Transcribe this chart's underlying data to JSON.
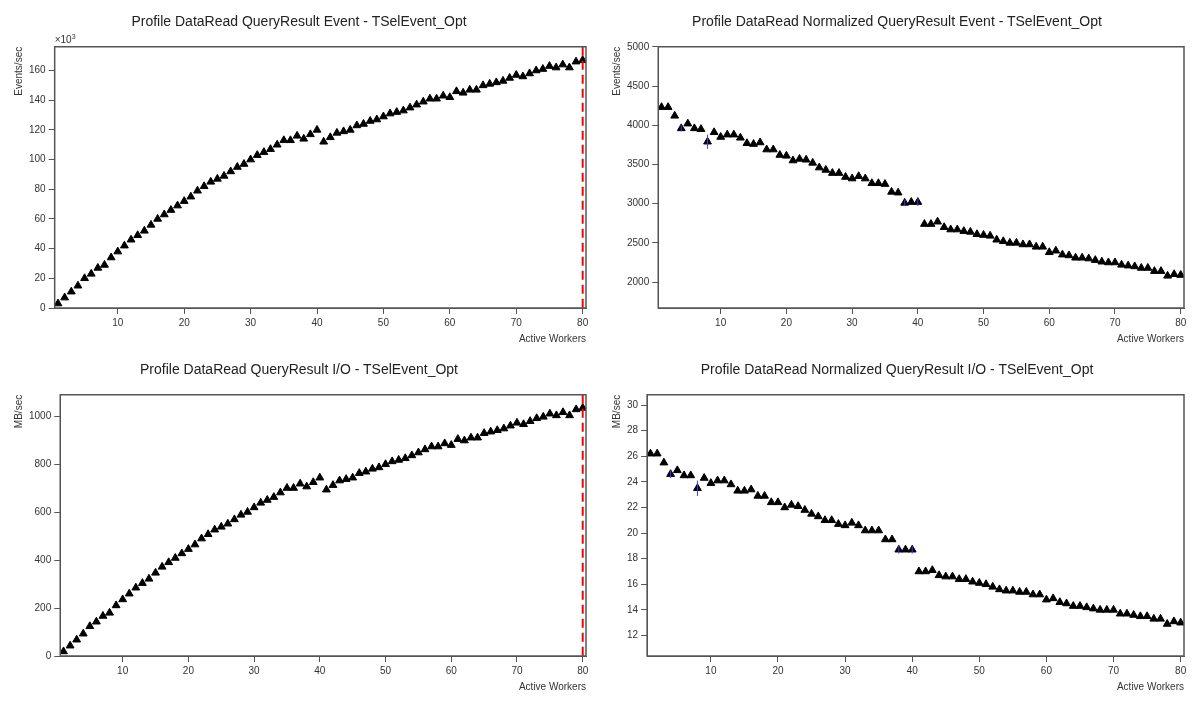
{
  "chart_data": [
    {
      "type": "scatter",
      "title": "Profile DataRead QueryResult Event - TSelEvent_Opt",
      "xlabel": "Active Workers",
      "ylabel": "Events/sec",
      "annotations": [
        "×10$^{3}$"
      ],
      "marker": "triangle",
      "grid": false,
      "xlim": [
        0.5,
        80.5
      ],
      "xticks": [
        10,
        20,
        30,
        40,
        50,
        60,
        70,
        80
      ],
      "ylim": [
        0,
        176
      ],
      "yticks": [
        0,
        20,
        40,
        60,
        80,
        100,
        120,
        140,
        160
      ],
      "ref_lines": [
        {
          "axis": "x",
          "value": 80,
          "color": "#ff0000",
          "line_style": "dashed"
        }
      ],
      "x": [
        1,
        2,
        3,
        4,
        5,
        6,
        7,
        8,
        9,
        10,
        11,
        12,
        13,
        14,
        15,
        16,
        17,
        18,
        19,
        20,
        21,
        22,
        23,
        24,
        25,
        26,
        27,
        28,
        29,
        30,
        31,
        32,
        33,
        34,
        35,
        36,
        37,
        38,
        39,
        40,
        41,
        42,
        43,
        44,
        45,
        46,
        47,
        48,
        49,
        50,
        51,
        52,
        53,
        54,
        55,
        56,
        57,
        58,
        59,
        60,
        61,
        62,
        63,
        64,
        65,
        66,
        67,
        68,
        69,
        70,
        71,
        72,
        73,
        74,
        75,
        76,
        77,
        78,
        79,
        80
      ],
      "series": [
        {
          "color": "#000000",
          "values": [
            3,
            7,
            11,
            15,
            20,
            23,
            27,
            29,
            34,
            38,
            42,
            46,
            49,
            52,
            56,
            60,
            63,
            66,
            69,
            72,
            75,
            79,
            82,
            85,
            87,
            89,
            92,
            95,
            97,
            100,
            103,
            105,
            107,
            110,
            113,
            113,
            116,
            114,
            117,
            120,
            112,
            115,
            118,
            119,
            120,
            123,
            124,
            126,
            127,
            129,
            131,
            132,
            133,
            135,
            137,
            139,
            141,
            141,
            143,
            142,
            146,
            145,
            147,
            147,
            150,
            151,
            152,
            153,
            155,
            157,
            156,
            158,
            160,
            161,
            163,
            162,
            164,
            162,
            166,
            167
          ]
        }
      ]
    },
    {
      "type": "scatter",
      "title": "Profile DataRead Normalized QueryResult Event - TSelEvent_Opt",
      "xlabel": "Active Workers",
      "ylabel": "Events/sec",
      "marker": "triangle",
      "grid": false,
      "xlim": [
        0.5,
        80.5
      ],
      "xticks": [
        10,
        20,
        30,
        40,
        50,
        60,
        70,
        80
      ],
      "ylim": [
        1670,
        5000
      ],
      "yticks": [
        2000,
        2500,
        3000,
        3500,
        4000,
        4500,
        5000
      ],
      "x": [
        1,
        2,
        3,
        4,
        5,
        6,
        7,
        8,
        9,
        10,
        11,
        12,
        13,
        14,
        15,
        16,
        17,
        18,
        19,
        20,
        21,
        22,
        23,
        24,
        25,
        26,
        27,
        28,
        29,
        30,
        31,
        32,
        33,
        34,
        35,
        36,
        37,
        38,
        39,
        40,
        41,
        42,
        43,
        44,
        45,
        46,
        47,
        48,
        49,
        50,
        51,
        52,
        53,
        54,
        55,
        56,
        57,
        58,
        59,
        60,
        61,
        62,
        63,
        64,
        65,
        66,
        67,
        68,
        69,
        70,
        71,
        72,
        73,
        74,
        75,
        76,
        77,
        78,
        79,
        80
      ],
      "series": [
        {
          "color": "#000000",
          "values": [
            4230,
            4230,
            4120,
            3960,
            4020,
            3960,
            3950,
            3790,
            3910,
            3850,
            3880,
            3880,
            3840,
            3770,
            3760,
            3780,
            3690,
            3690,
            3620,
            3610,
            3550,
            3570,
            3560,
            3520,
            3460,
            3430,
            3390,
            3390,
            3340,
            3320,
            3350,
            3320,
            3260,
            3260,
            3250,
            3150,
            3140,
            3010,
            3020,
            3020,
            2740,
            2740,
            2770,
            2700,
            2670,
            2670,
            2650,
            2640,
            2610,
            2600,
            2590,
            2540,
            2520,
            2500,
            2500,
            2480,
            2480,
            2450,
            2450,
            2380,
            2400,
            2350,
            2340,
            2310,
            2310,
            2300,
            2280,
            2260,
            2250,
            2250,
            2220,
            2210,
            2200,
            2180,
            2180,
            2140,
            2140,
            2080,
            2100,
            2090
          ],
          "errors": [
            null,
            null,
            null,
            40,
            null,
            null,
            null,
            90,
            null,
            null,
            null,
            null,
            null,
            null,
            null,
            null,
            null,
            null,
            null,
            null,
            null,
            null,
            null,
            null,
            null,
            null,
            null,
            null,
            null,
            null,
            null,
            null,
            null,
            null,
            null,
            null,
            null,
            40,
            null,
            50,
            null,
            null,
            null,
            null,
            null,
            null,
            null,
            null,
            null,
            null,
            null,
            null,
            null,
            null,
            null,
            null,
            null,
            null,
            null,
            null,
            null,
            null,
            null,
            null,
            null,
            null,
            null,
            null,
            null,
            null,
            null,
            null,
            null,
            null,
            null,
            null,
            null,
            null,
            null,
            null
          ]
        }
      ]
    },
    {
      "type": "scatter",
      "title": "Profile DataRead QueryResult I/O - TSelEvent_Opt",
      "xlabel": "Active Workers",
      "ylabel": "MB/sec",
      "marker": "triangle",
      "grid": false,
      "xlim": [
        0.5,
        80.5
      ],
      "xticks": [
        10,
        20,
        30,
        40,
        50,
        60,
        70,
        80
      ],
      "ylim": [
        0,
        1090
      ],
      "yticks": [
        0,
        200,
        400,
        600,
        800,
        1000
      ],
      "ref_lines": [
        {
          "axis": "x",
          "value": 80,
          "color": "#ff0000",
          "line_style": "dashed"
        }
      ],
      "x": [
        1,
        2,
        3,
        4,
        5,
        6,
        7,
        8,
        9,
        10,
        11,
        12,
        13,
        14,
        15,
        16,
        17,
        18,
        19,
        20,
        21,
        22,
        23,
        24,
        25,
        26,
        27,
        28,
        29,
        30,
        31,
        32,
        33,
        34,
        35,
        36,
        37,
        38,
        39,
        40,
        41,
        42,
        43,
        44,
        45,
        46,
        47,
        48,
        49,
        50,
        51,
        52,
        53,
        54,
        55,
        56,
        57,
        58,
        59,
        60,
        61,
        62,
        63,
        64,
        65,
        66,
        67,
        68,
        69,
        70,
        71,
        72,
        73,
        74,
        75,
        76,
        77,
        78,
        79,
        80
      ],
      "series": [
        {
          "color": "#000000",
          "values": [
            19,
            43,
            68,
            93,
            124,
            143,
            167,
            180,
            211,
            236,
            260,
            285,
            304,
            322,
            347,
            372,
            391,
            409,
            428,
            446,
            465,
            490,
            508,
            527,
            539,
            552,
            570,
            589,
            601,
            620,
            639,
            651,
            663,
            682,
            701,
            701,
            719,
            707,
            725,
            744,
            694,
            713,
            732,
            738,
            744,
            763,
            769,
            781,
            787,
            800,
            812,
            818,
            825,
            837,
            849,
            862,
            874,
            874,
            887,
            880,
            905,
            899,
            911,
            911,
            930,
            936,
            942,
            949,
            961,
            973,
            967,
            980,
            992,
            998,
            1011,
            1004,
            1017,
            1004,
            1029,
            1035
          ]
        }
      ]
    },
    {
      "type": "scatter",
      "title": "Profile DataRead Normalized QueryResult I/O - TSelEvent_Opt",
      "xlabel": "Active Workers",
      "ylabel": "MB/sec",
      "marker": "triangle",
      "grid": false,
      "xlim": [
        0.5,
        80.5
      ],
      "xticks": [
        10,
        20,
        30,
        40,
        50,
        60,
        70,
        80
      ],
      "ylim": [
        10.4,
        30.8
      ],
      "yticks": [
        12,
        14,
        16,
        18,
        20,
        22,
        24,
        26,
        28,
        30
      ],
      "x": [
        1,
        2,
        3,
        4,
        5,
        6,
        7,
        8,
        9,
        10,
        11,
        12,
        13,
        14,
        15,
        16,
        17,
        18,
        19,
        20,
        21,
        22,
        23,
        24,
        25,
        26,
        27,
        28,
        29,
        30,
        31,
        32,
        33,
        34,
        35,
        36,
        37,
        38,
        39,
        40,
        41,
        42,
        43,
        44,
        45,
        46,
        47,
        48,
        49,
        50,
        51,
        52,
        53,
        54,
        55,
        56,
        57,
        58,
        59,
        60,
        61,
        62,
        63,
        64,
        65,
        66,
        67,
        68,
        69,
        70,
        71,
        72,
        73,
        74,
        75,
        76,
        77,
        78,
        79,
        80
      ],
      "series": [
        {
          "color": "#000000",
          "values": [
            26.2,
            26.2,
            25.5,
            24.6,
            24.9,
            24.5,
            24.5,
            23.5,
            24.3,
            23.9,
            24.1,
            24.1,
            23.8,
            23.3,
            23.3,
            23.4,
            22.9,
            22.9,
            22.4,
            22.4,
            22.0,
            22.2,
            22.1,
            21.8,
            21.5,
            21.3,
            21.0,
            21.0,
            20.7,
            20.6,
            20.8,
            20.6,
            20.2,
            20.2,
            20.2,
            19.5,
            19.5,
            18.7,
            18.7,
            18.7,
            17.0,
            17.0,
            17.1,
            16.7,
            16.6,
            16.6,
            16.4,
            16.4,
            16.2,
            16.1,
            16.0,
            15.8,
            15.6,
            15.5,
            15.5,
            15.4,
            15.4,
            15.2,
            15.2,
            14.8,
            14.9,
            14.6,
            14.5,
            14.3,
            14.3,
            14.2,
            14.1,
            14.0,
            14.0,
            14.0,
            13.7,
            13.7,
            13.6,
            13.5,
            13.5,
            13.3,
            13.3,
            12.9,
            13.1,
            13.0
          ],
          "errors": [
            null,
            null,
            null,
            0.3,
            null,
            null,
            null,
            0.6,
            null,
            null,
            null,
            null,
            null,
            null,
            null,
            null,
            null,
            null,
            null,
            null,
            null,
            null,
            null,
            null,
            null,
            null,
            null,
            null,
            null,
            null,
            null,
            null,
            null,
            null,
            null,
            null,
            null,
            0.3,
            null,
            0.3,
            null,
            null,
            null,
            null,
            null,
            null,
            null,
            null,
            null,
            null,
            null,
            null,
            null,
            null,
            null,
            null,
            null,
            null,
            null,
            null,
            null,
            null,
            null,
            null,
            null,
            null,
            null,
            null,
            null,
            null,
            null,
            null,
            null,
            null,
            null,
            null,
            null,
            null,
            null,
            null
          ]
        }
      ]
    }
  ]
}
